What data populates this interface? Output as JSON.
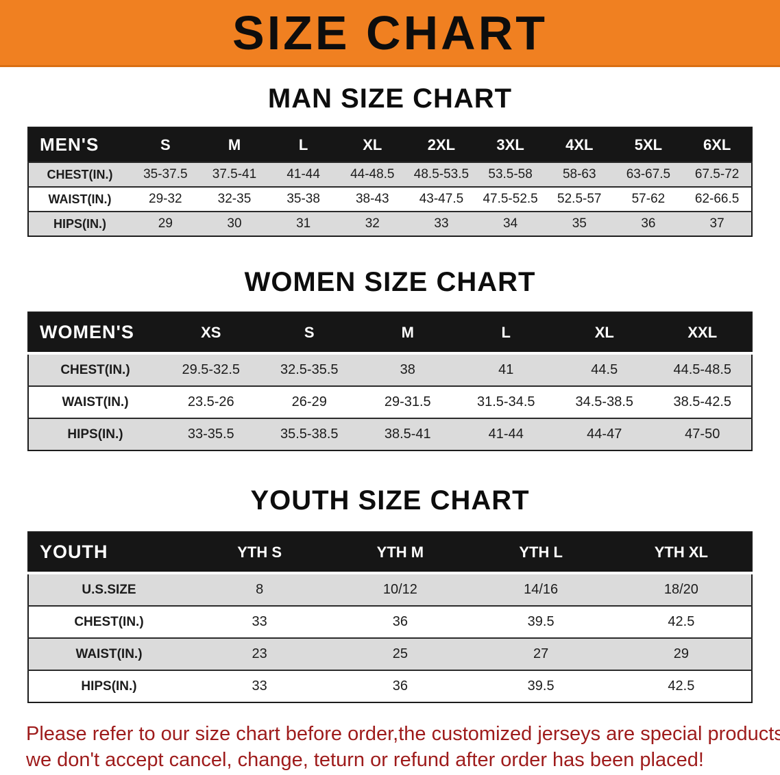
{
  "banner": {
    "title": "SIZE CHART"
  },
  "colors": {
    "banner_bg": "#F08021",
    "table_header_bg": "#161616",
    "table_header_text": "#FFFFFF",
    "row_shaded_bg": "#DBDBDB",
    "row_plain_bg": "#FFFFFF",
    "disclaimer_text": "#9E1B1B"
  },
  "sections": [
    {
      "heading": "MAN SIZE CHART",
      "table": {
        "header": [
          "MEN'S",
          "S",
          "M",
          "L",
          "XL",
          "2XL",
          "3XL",
          "4XL",
          "5XL",
          "6XL"
        ],
        "rows": [
          [
            "CHEST(IN.)",
            "35-37.5",
            "37.5-41",
            "41-44",
            "44-48.5",
            "48.5-53.5",
            "53.5-58",
            "58-63",
            "63-67.5",
            "67.5-72"
          ],
          [
            "WAIST(IN.)",
            "29-32",
            "32-35",
            "35-38",
            "38-43",
            "43-47.5",
            "47.5-52.5",
            "52.5-57",
            "57-62",
            "62-66.5"
          ],
          [
            "HIPS(IN.)",
            "29",
            "30",
            "31",
            "32",
            "33",
            "34",
            "35",
            "36",
            "37"
          ]
        ]
      }
    },
    {
      "heading": "WOMEN SIZE CHART",
      "table": {
        "header": [
          "WOMEN'S",
          "XS",
          "S",
          "M",
          "L",
          "XL",
          "XXL"
        ],
        "rows": [
          [
            "CHEST(IN.)",
            "29.5-32.5",
            "32.5-35.5",
            "38",
            "41",
            "44.5",
            "44.5-48.5"
          ],
          [
            "WAIST(IN.)",
            "23.5-26",
            "26-29",
            "29-31.5",
            "31.5-34.5",
            "34.5-38.5",
            "38.5-42.5"
          ],
          [
            "HIPS(IN.)",
            "33-35.5",
            "35.5-38.5",
            "38.5-41",
            "41-44",
            "44-47",
            "47-50"
          ]
        ]
      }
    },
    {
      "heading": "YOUTH SIZE CHART",
      "table": {
        "header": [
          "YOUTH",
          "YTH S",
          "YTH M",
          "YTH L",
          "YTH XL"
        ],
        "rows": [
          [
            "U.S.SIZE",
            "8",
            "10/12",
            "14/16",
            "18/20"
          ],
          [
            "CHEST(IN.)",
            "33",
            "36",
            "39.5",
            "42.5"
          ],
          [
            "WAIST(IN.)",
            "23",
            "25",
            "27",
            "29"
          ],
          [
            "HIPS(IN.)",
            "33",
            "36",
            "39.5",
            "42.5"
          ]
        ]
      }
    }
  ],
  "disclaimer": {
    "line1": "Please refer to our size chart before order,the customized jerseys are special products,",
    "line2": "we don't accept cancel, change, teturn or refund after order has been placed!"
  }
}
